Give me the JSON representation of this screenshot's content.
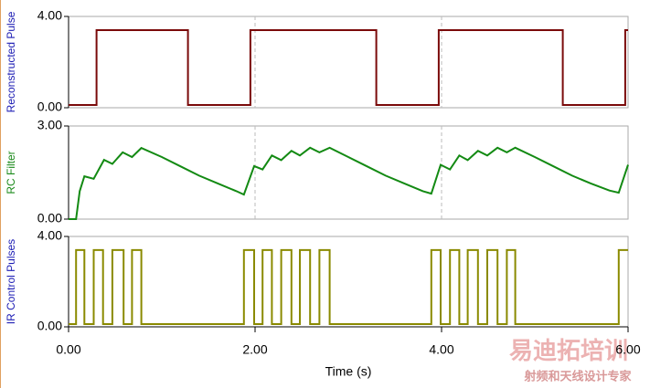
{
  "chart_data": [
    {
      "type": "line",
      "ylabel": "Reconstructed Pulse",
      "ylabel_color": "#1c1cb4",
      "xlim": [
        0,
        6
      ],
      "xticks": [
        {
          "value": 0,
          "label": "0.00"
        },
        {
          "value": 2,
          "label": "2.00"
        },
        {
          "value": 4,
          "label": "4.00"
        },
        {
          "value": 6,
          "label": "6.00"
        }
      ],
      "ylim": [
        0,
        4
      ],
      "yticks": [
        {
          "value": 0,
          "label": "0.00"
        },
        {
          "value": 4,
          "label": "4.00"
        }
      ],
      "xgrid": true,
      "series": [
        {
          "color": "#7a0a0a",
          "x": [
            0,
            0.3,
            0.3,
            1.28,
            1.28,
            1.95,
            1.95,
            3.3,
            3.3,
            3.97,
            3.97,
            5.3,
            5.3,
            5.97,
            5.97,
            6
          ],
          "values": [
            0.12,
            0.12,
            3.4,
            3.4,
            0.12,
            0.12,
            3.4,
            3.4,
            0.12,
            0.12,
            3.4,
            3.4,
            0.12,
            0.12,
            3.4,
            3.4
          ]
        }
      ]
    },
    {
      "type": "line",
      "ylabel": "RC Filter",
      "ylabel_color": "#1a8a1a",
      "xlim": [
        0,
        6
      ],
      "xticks": [
        {
          "value": 0,
          "label": "0.00"
        },
        {
          "value": 2,
          "label": "2.00"
        },
        {
          "value": 4,
          "label": "4.00"
        },
        {
          "value": 6,
          "label": "6.00"
        }
      ],
      "ylim": [
        0,
        3
      ],
      "yticks": [
        {
          "value": 0,
          "label": "0.00"
        },
        {
          "value": 3,
          "label": "3.00"
        }
      ],
      "xgrid": true,
      "series": [
        {
          "color": "#138a13",
          "x": [
            0,
            0.08,
            0.12,
            0.17,
            0.27,
            0.38,
            0.47,
            0.58,
            0.68,
            0.78,
            1.0,
            1.2,
            1.4,
            1.6,
            1.8,
            1.88,
            1.99,
            2.08,
            2.18,
            2.28,
            2.39,
            2.48,
            2.59,
            2.69,
            2.8,
            3.0,
            3.2,
            3.4,
            3.6,
            3.8,
            3.89,
            3.99,
            4.09,
            4.19,
            4.28,
            4.39,
            4.49,
            4.6,
            4.7,
            4.79,
            5.0,
            5.2,
            5.4,
            5.6,
            5.8,
            5.9,
            6
          ],
          "values": [
            0,
            0,
            0.9,
            1.38,
            1.3,
            1.91,
            1.78,
            2.15,
            2.0,
            2.29,
            2.0,
            1.7,
            1.4,
            1.15,
            0.9,
            0.79,
            1.71,
            1.6,
            2.05,
            1.9,
            2.2,
            2.05,
            2.3,
            2.15,
            2.3,
            2.0,
            1.7,
            1.4,
            1.15,
            0.9,
            0.82,
            1.75,
            1.6,
            2.05,
            1.9,
            2.2,
            2.05,
            2.3,
            2.15,
            2.3,
            2.0,
            1.7,
            1.4,
            1.15,
            0.92,
            0.85,
            1.75
          ]
        }
      ]
    },
    {
      "type": "line",
      "ylabel": "IR Control Pulses",
      "ylabel_color": "#1c1cb4",
      "xlabel": "Time (s)",
      "xlim": [
        0,
        6
      ],
      "xticks": [
        {
          "value": 0,
          "label": "0.00"
        },
        {
          "value": 2,
          "label": "2.00"
        },
        {
          "value": 4,
          "label": "4.00"
        },
        {
          "value": 6,
          "label": "6.00"
        }
      ],
      "ylim": [
        0,
        4
      ],
      "yticks": [
        {
          "value": 0,
          "label": "0.00"
        },
        {
          "value": 4,
          "label": "4.00"
        }
      ],
      "xgrid": false,
      "series": [
        {
          "color": "#8a8a00",
          "x": [
            0,
            0.08,
            0.08,
            0.17,
            0.17,
            0.27,
            0.27,
            0.37,
            0.37,
            0.47,
            0.47,
            0.59,
            0.59,
            0.68,
            0.68,
            0.78,
            0.78,
            1.88,
            1.88,
            1.99,
            1.99,
            2.08,
            2.08,
            2.18,
            2.18,
            2.28,
            2.28,
            2.39,
            2.39,
            2.48,
            2.48,
            2.59,
            2.59,
            2.69,
            2.69,
            2.8,
            2.8,
            3.89,
            3.89,
            3.99,
            3.99,
            4.09,
            4.09,
            4.19,
            4.19,
            4.28,
            4.28,
            4.39,
            4.39,
            4.49,
            4.49,
            4.6,
            4.6,
            4.7,
            4.7,
            4.79,
            4.79,
            5.9,
            5.9,
            6
          ],
          "values": [
            0.12,
            0.12,
            3.4,
            3.4,
            0.12,
            0.12,
            3.4,
            3.4,
            0.12,
            0.12,
            3.4,
            3.4,
            0.12,
            0.12,
            3.4,
            3.4,
            0.12,
            0.12,
            3.4,
            3.4,
            0.12,
            0.12,
            3.4,
            3.4,
            0.12,
            0.12,
            3.4,
            3.4,
            0.12,
            0.12,
            3.4,
            3.4,
            0.12,
            0.12,
            3.4,
            3.4,
            0.12,
            0.12,
            3.4,
            3.4,
            0.12,
            0.12,
            3.4,
            3.4,
            0.12,
            0.12,
            3.4,
            3.4,
            0.12,
            0.12,
            3.4,
            3.4,
            0.12,
            0.12,
            3.4,
            3.4,
            0.12,
            0.12,
            3.4,
            3.4
          ]
        }
      ]
    }
  ],
  "watermark": {
    "title": "易迪拓培训",
    "subtitle": "射频和天线设计专家"
  }
}
